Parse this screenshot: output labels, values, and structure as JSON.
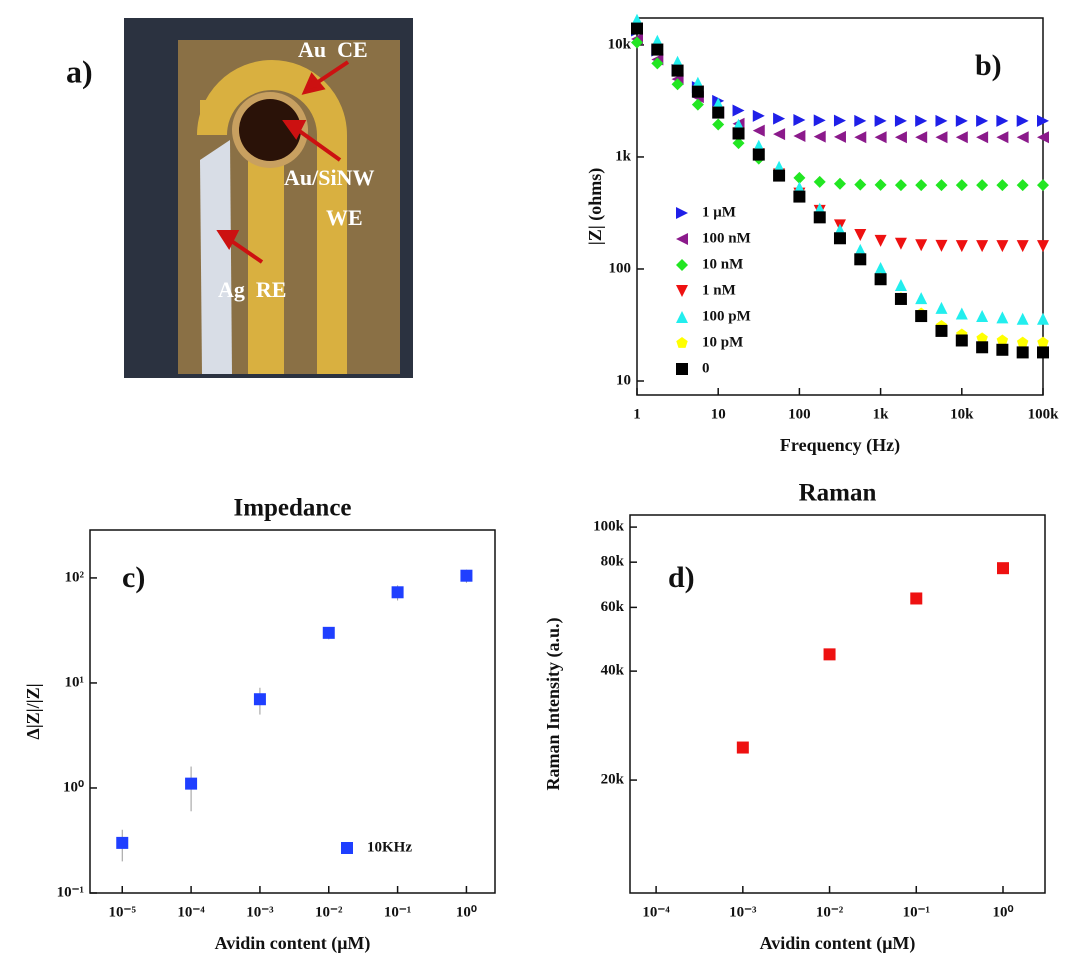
{
  "photo": {
    "panel_label": "a)",
    "labels": [
      "Au  CE",
      "Au/SiNW",
      "WE",
      "Ag  RE"
    ]
  },
  "chart_data": [
    {
      "type": "scatter",
      "panel_label": "b)",
      "xlabel": "Frequency (Hz)",
      "ylabel": "|Z| (ohms)",
      "xscale": "log",
      "yscale": "log",
      "xlim": [
        1,
        100000
      ],
      "ylim": [
        7.5,
        17400
      ],
      "xticks": [
        1,
        10,
        100,
        {
          "value": 1000,
          "label": "1k"
        },
        {
          "value": 10000,
          "label": "10k"
        },
        {
          "value": 100000,
          "label": "100k"
        }
      ],
      "yticks": [
        10,
        100,
        {
          "value": 1000,
          "label": "1k"
        },
        {
          "value": 10000,
          "label": "10k"
        }
      ],
      "legend": "left",
      "x": [
        1,
        1.78,
        3.16,
        5.62,
        10,
        17.8,
        31.6,
        56.2,
        100,
        178,
        316,
        562,
        1000,
        1780,
        3160,
        5620,
        10000,
        17800,
        31600,
        56200,
        100000
      ],
      "series": [
        {
          "name": "1 μM",
          "color": "#1f1fe8",
          "marker": "triangle-right",
          "values": [
            13460,
            8890,
            5990,
            4200,
            3170,
            2600,
            2330,
            2200,
            2140,
            2120,
            2110,
            2100,
            2100,
            2100,
            2100,
            2100,
            2100,
            2100,
            2100,
            2100,
            2100
          ]
        },
        {
          "name": "100 nM",
          "color": "#8b1a8b",
          "marker": "triangle-left",
          "values": [
            11300,
            7420,
            4950,
            3420,
            2490,
            1980,
            1720,
            1600,
            1540,
            1520,
            1510,
            1500,
            1500,
            1500,
            1500,
            1500,
            1500,
            1500,
            1500,
            1500,
            1500
          ]
        },
        {
          "name": "10 nM",
          "color": "#22e622",
          "marker": "diamond",
          "values": [
            10510,
            6840,
            4460,
            2930,
            1950,
            1330,
            967,
            759,
            651,
            600,
            577,
            567,
            563,
            561,
            560,
            560,
            560,
            560,
            560,
            560,
            560
          ]
        },
        {
          "name": "1 nM",
          "color": "#ee1111",
          "marker": "triangle-down",
          "values": [
            14000,
            9090,
            5900,
            3840,
            2500,
            1630,
            1060,
            700,
            471,
            330,
            245,
            201,
            178,
            168,
            163,
            161,
            160,
            160,
            160,
            160,
            160
          ]
        },
        {
          "name": "100 pM",
          "color": "#22eeee",
          "marker": "triangle-up",
          "values": [
            16800,
            10900,
            7080,
            4600,
            2990,
            1940,
            1260,
            818,
            532,
            345,
            224,
            148,
            102,
            72,
            55,
            45,
            40,
            38,
            37,
            36,
            36
          ]
        },
        {
          "name": "10 pM",
          "color": "#ffff00",
          "marker": "pentagon",
          "values": [
            14000,
            9090,
            5900,
            3830,
            2490,
            1620,
            1050,
            682,
            443,
            289,
            188,
            123,
            82,
            55,
            40,
            31,
            26,
            24,
            23,
            22,
            22
          ]
        },
        {
          "name": "0",
          "color": "#000000",
          "marker": "square",
          "values": [
            14000,
            9090,
            5900,
            3830,
            2490,
            1620,
            1050,
            682,
            443,
            289,
            188,
            122,
            81,
            54,
            38,
            28,
            23,
            20,
            19,
            18,
            18
          ]
        }
      ]
    },
    {
      "type": "scatter",
      "title": "Impedance",
      "panel_label": "c)",
      "xlabel": "Avidin content (μM)",
      "ylabel": "Δ|Z|/|Z|",
      "xscale": "log",
      "yscale": "log",
      "xlim": [
        3.4e-06,
        2.6
      ],
      "ylim": [
        0.1,
        286
      ],
      "xticks": [
        {
          "value": 1e-05,
          "label": "10⁻⁵"
        },
        {
          "value": 0.0001,
          "label": "10⁻⁴"
        },
        {
          "value": 0.001,
          "label": "10⁻³"
        },
        {
          "value": 0.01,
          "label": "10⁻²"
        },
        {
          "value": 0.1,
          "label": "10⁻¹"
        },
        {
          "value": 1,
          "label": "10⁰"
        }
      ],
      "yticks": [
        {
          "value": 0.1,
          "label": "10⁻¹"
        },
        {
          "value": 1,
          "label": "10⁰"
        },
        {
          "value": 10,
          "label": "10¹"
        },
        {
          "value": 100,
          "label": "10²"
        }
      ],
      "legend": "lower right",
      "x": [
        1e-05,
        0.0001,
        0.001,
        0.01,
        0.1,
        1
      ],
      "series": [
        {
          "name": "10KHz",
          "color": "#1f3fff",
          "marker": "square",
          "values": [
            0.3,
            1.1,
            7,
            30,
            73,
            105
          ],
          "errors": [
            0.1,
            0.5,
            2,
            4,
            12,
            15
          ]
        }
      ]
    },
    {
      "type": "scatter",
      "title": "Raman",
      "panel_label": "d)",
      "xlabel": "Avidin content (μM)",
      "ylabel": "Raman Intensity (a.u.)",
      "xscale": "log",
      "yscale": "log",
      "xlim": [
        5e-05,
        3.05
      ],
      "ylim": [
        9750,
        108000
      ],
      "xticks": [
        {
          "value": 0.0001,
          "label": "10⁻⁴"
        },
        {
          "value": 0.001,
          "label": "10⁻³"
        },
        {
          "value": 0.01,
          "label": "10⁻²"
        },
        {
          "value": 0.1,
          "label": "10⁻¹"
        },
        {
          "value": 1,
          "label": "10⁰"
        }
      ],
      "yticks": [
        {
          "value": 20000,
          "label": "20k"
        },
        {
          "value": 40000,
          "label": "40k"
        },
        {
          "value": 60000,
          "label": "60k"
        },
        {
          "value": 80000,
          "label": "80k"
        },
        {
          "value": 100000,
          "label": "100k"
        }
      ],
      "x": [
        0.001,
        0.01,
        0.1,
        1
      ],
      "series": [
        {
          "color": "#ee1111",
          "marker": "square",
          "values": [
            24600,
            44500,
            63500,
            77000
          ]
        }
      ]
    }
  ]
}
